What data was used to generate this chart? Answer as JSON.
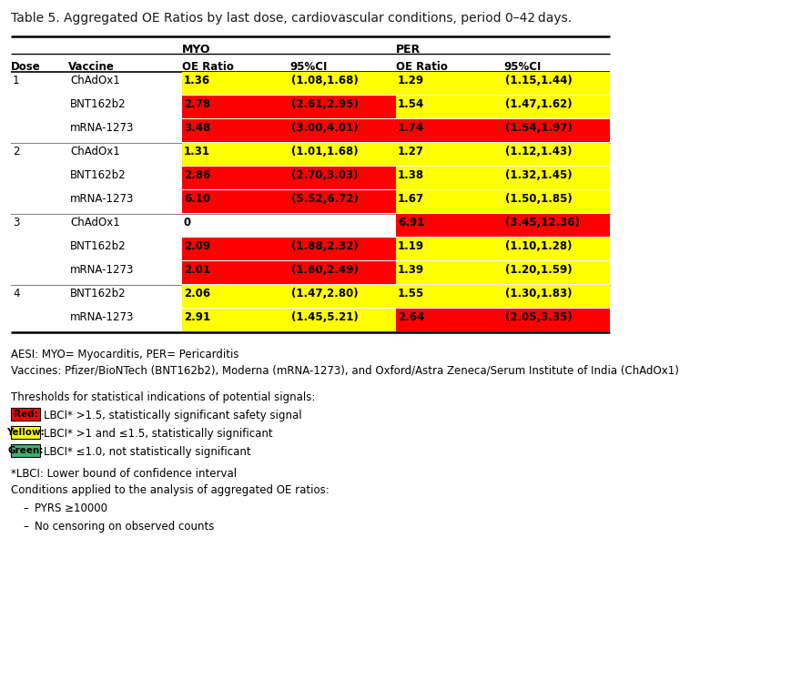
{
  "title": "Table 5. Aggregated OE Ratios by last dose, cardiovascular conditions, period 0–42 days.",
  "rows": [
    {
      "dose": "1",
      "vaccine": "ChAdOx1",
      "myo_ratio": "1.36",
      "myo_ci": "(1.08,1.68)",
      "per_ratio": "1.29",
      "per_ci": "(1.15,1.44)",
      "myo_bg": "yellow",
      "per_bg": "yellow"
    },
    {
      "dose": "",
      "vaccine": "BNT162b2",
      "myo_ratio": "2.78",
      "myo_ci": "(2.61,2.95)",
      "per_ratio": "1.54",
      "per_ci": "(1.47,1.62)",
      "myo_bg": "red",
      "per_bg": "yellow"
    },
    {
      "dose": "",
      "vaccine": "mRNA-1273",
      "myo_ratio": "3.48",
      "myo_ci": "(3.00,4.01)",
      "per_ratio": "1.74",
      "per_ci": "(1.54,1.97)",
      "myo_bg": "red",
      "per_bg": "red"
    },
    {
      "dose": "2",
      "vaccine": "ChAdOx1",
      "myo_ratio": "1.31",
      "myo_ci": "(1.01,1.68)",
      "per_ratio": "1.27",
      "per_ci": "(1.12,1.43)",
      "myo_bg": "yellow",
      "per_bg": "yellow"
    },
    {
      "dose": "",
      "vaccine": "BNT162b2",
      "myo_ratio": "2.86",
      "myo_ci": "(2.70,3.03)",
      "per_ratio": "1.38",
      "per_ci": "(1.32,1.45)",
      "myo_bg": "red",
      "per_bg": "yellow"
    },
    {
      "dose": "",
      "vaccine": "mRNA-1273",
      "myo_ratio": "6.10",
      "myo_ci": "(5.52,6.72)",
      "per_ratio": "1.67",
      "per_ci": "(1.50,1.85)",
      "myo_bg": "red",
      "per_bg": "yellow"
    },
    {
      "dose": "3",
      "vaccine": "ChAdOx1",
      "myo_ratio": "0",
      "myo_ci": "",
      "per_ratio": "6.91",
      "per_ci": "(3.45,12.36)",
      "myo_bg": "none",
      "per_bg": "red"
    },
    {
      "dose": "",
      "vaccine": "BNT162b2",
      "myo_ratio": "2.09",
      "myo_ci": "(1.88,2.32)",
      "per_ratio": "1.19",
      "per_ci": "(1.10,1.28)",
      "myo_bg": "red",
      "per_bg": "yellow"
    },
    {
      "dose": "",
      "vaccine": "mRNA-1273",
      "myo_ratio": "2.01",
      "myo_ci": "(1.60,2.49)",
      "per_ratio": "1.39",
      "per_ci": "(1.20,1.59)",
      "myo_bg": "red",
      "per_bg": "yellow"
    },
    {
      "dose": "4",
      "vaccine": "BNT162b2",
      "myo_ratio": "2.06",
      "myo_ci": "(1.47,2.80)",
      "per_ratio": "1.55",
      "per_ci": "(1.30,1.83)",
      "myo_bg": "yellow",
      "per_bg": "yellow"
    },
    {
      "dose": "",
      "vaccine": "mRNA-1273",
      "myo_ratio": "2.91",
      "myo_ci": "(1.45,5.21)",
      "per_ratio": "2.64",
      "per_ci": "(2.05,3.35)",
      "myo_bg": "yellow",
      "per_bg": "red"
    }
  ],
  "color_map": {
    "red": "#FF0000",
    "yellow": "#FFFF00",
    "green": "#3CB371",
    "none": "#FFFFFF"
  },
  "footnotes": [
    "AESI: MYO= Myocarditis, PER= Pericarditis",
    "Vaccines: Pfizer/BioNTech (BNT162b2), Moderna (mRNA-1273), and Oxford/Astra Zeneca/Serum Institute of India (ChAdOx1)"
  ],
  "legend_items": [
    {
      "color": "#FF0000",
      "label": "Red:",
      "text": "LBCI* >1.5, statistically significant safety signal"
    },
    {
      "color": "#FFFF00",
      "label": "Yellow:",
      "text": "LBCI* >1 and ≤1.5, statistically significant"
    },
    {
      "color": "#3CB371",
      "label": "Green:",
      "text": "LBCI* ≤1.0, not statistically significant"
    }
  ],
  "footnote2": "*LBCI: Lower bound of confidence interval",
  "footnote3": "Conditions applied to the analysis of aggregated OE ratios:",
  "bullet1": "PYRS ≥10000",
  "bullet2": "No censoring on observed counts"
}
